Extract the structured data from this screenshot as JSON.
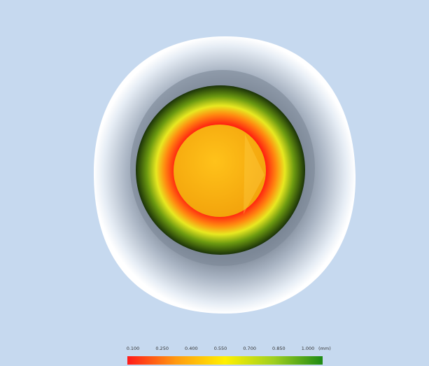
{
  "legend": {
    "ticks": [
      {
        "value": 0.1,
        "label": "0.100"
      },
      {
        "value": 0.25,
        "label": "0.250"
      },
      {
        "value": 0.4,
        "label": "0.400"
      },
      {
        "value": 0.55,
        "label": "0.550"
      },
      {
        "value": 0.7,
        "label": "0.700"
      },
      {
        "value": 0.85,
        "label": "0.850"
      },
      {
        "value": 1.0,
        "label": "1.000"
      }
    ],
    "range": [
      0.1,
      1.0
    ],
    "unit": "(mm)",
    "colors": [
      "#ff1a1a",
      "#ff9a10",
      "#fff000",
      "#9fcf20",
      "#1e8a14"
    ]
  }
}
